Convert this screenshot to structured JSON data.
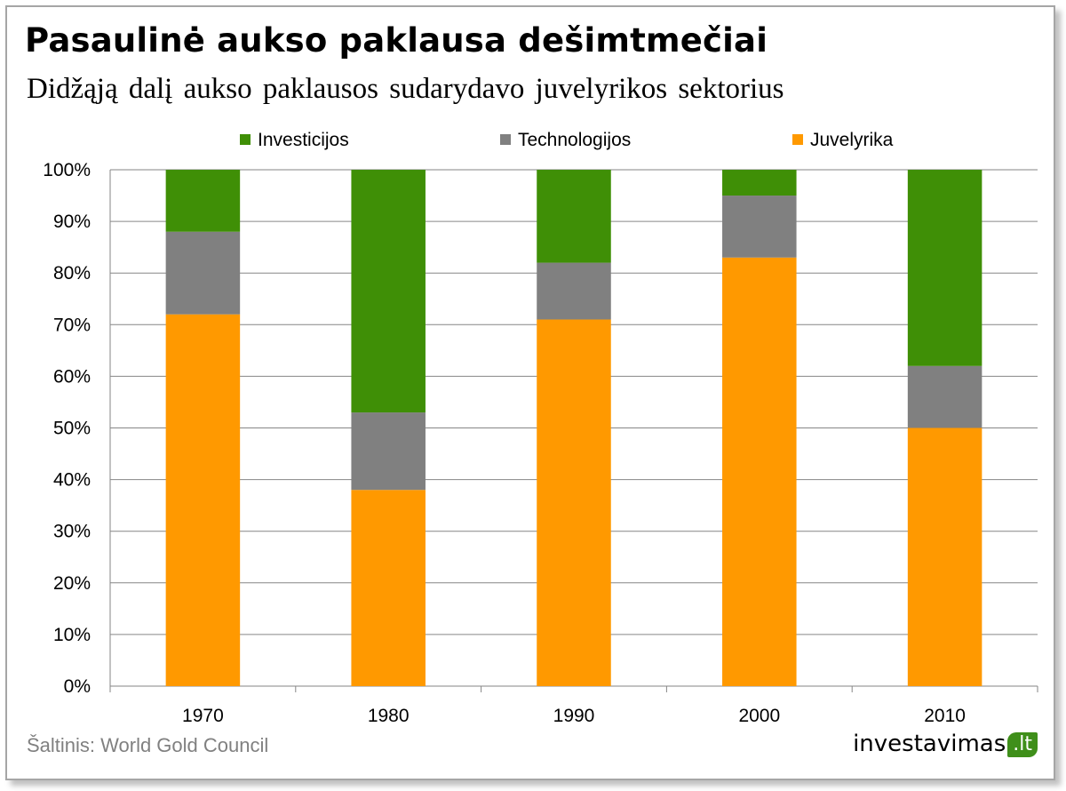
{
  "title": "Pasaulinė aukso paklausa dešimtmečiai",
  "subtitle": "Didžąją dalį aukso paklausos sudarydavo juvelyrikos sektorius",
  "source": "Šaltinis: World Gold Council",
  "logo": {
    "text": "investavimas",
    "suffix": ".lt"
  },
  "colors": {
    "investicijos": "#3f8f06",
    "technologijos": "#808080",
    "juvelyrika": "#ff9900",
    "grid": "#868686",
    "logo_green": "#3f8f1a"
  },
  "chart_data": {
    "type": "bar",
    "stacked": true,
    "categories": [
      "1970",
      "1980",
      "1990",
      "2000",
      "2010"
    ],
    "series": [
      {
        "name": "Juvelyrika",
        "values": [
          72,
          38,
          71,
          83,
          50
        ]
      },
      {
        "name": "Technologijos",
        "values": [
          16,
          15,
          11,
          12,
          12
        ]
      },
      {
        "name": "Investicijos",
        "values": [
          12,
          47,
          18,
          5,
          38
        ]
      }
    ],
    "legend_order": [
      "Investicijos",
      "Technologijos",
      "Juvelyrika"
    ],
    "ylim": [
      0,
      100
    ],
    "yticks": [
      "0%",
      "10%",
      "20%",
      "30%",
      "40%",
      "50%",
      "60%",
      "70%",
      "80%",
      "90%",
      "100%"
    ],
    "grid": true,
    "legend_position": "top"
  }
}
